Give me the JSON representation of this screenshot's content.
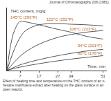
{
  "chart_data": {
    "type": "line",
    "title": "Journal of Chromatography 206 (1981)",
    "x_label": "Time, min",
    "y_label": "THC content, mg/g",
    "caption": "Effect of heating time and temperature on the THC content of an n-hexane marihuana extract after heating on the glass surface in an open reactor.",
    "x": [
      0,
      2,
      4,
      7,
      10,
      17,
      27,
      34,
      42,
      51
    ],
    "series": [
      {
        "name": "145°C (293°F)",
        "color": "#555555",
        "values": [
          0,
          0.45,
          0.7,
          0.86,
          0.85,
          0.8,
          0.72,
          0.67,
          0.6,
          0.55
        ]
      },
      {
        "name": "122°C (252°F)",
        "color": "#555555",
        "values": [
          0,
          0.2,
          0.38,
          0.58,
          0.7,
          0.8,
          0.82,
          0.81,
          0.8,
          0.78
        ]
      },
      {
        "name": "106°C (223°F)",
        "color": "#555555",
        "values": [
          0,
          0.08,
          0.15,
          0.25,
          0.33,
          0.46,
          0.58,
          0.63,
          0.67,
          0.7
        ]
      },
      {
        "name": "94°C (201°F)",
        "color": "#555555",
        "values": [
          0,
          0.03,
          0.06,
          0.1,
          0.13,
          0.19,
          0.26,
          0.3,
          0.34,
          0.37
        ]
      },
      {
        "name": "80°C (176°F)",
        "color": "#555555",
        "values": [
          0,
          0.02,
          0.04,
          0.06,
          0.08,
          0.12,
          0.17,
          0.2,
          0.23,
          0.26
        ]
      }
    ],
    "annotations": [
      {
        "text": "145°C (293°F)",
        "x": 9,
        "y": 0.93
      },
      {
        "text": "122°C (252°F)",
        "x": 28,
        "y": 0.9
      },
      {
        "text": "106°C (223°F)",
        "x": 40,
        "y": 0.73
      },
      {
        "text": "94°C (201°F)",
        "x": 44,
        "y": 0.44
      },
      {
        "text": "80°C (176°F)",
        "x": 44,
        "y": 0.3
      }
    ],
    "xlim": [
      0,
      53
    ],
    "xticks": [
      7,
      17,
      27,
      34,
      51
    ],
    "ylim": [
      0,
      1.1
    ],
    "yticks": [],
    "tick_labels": "x",
    "grid": false
  }
}
